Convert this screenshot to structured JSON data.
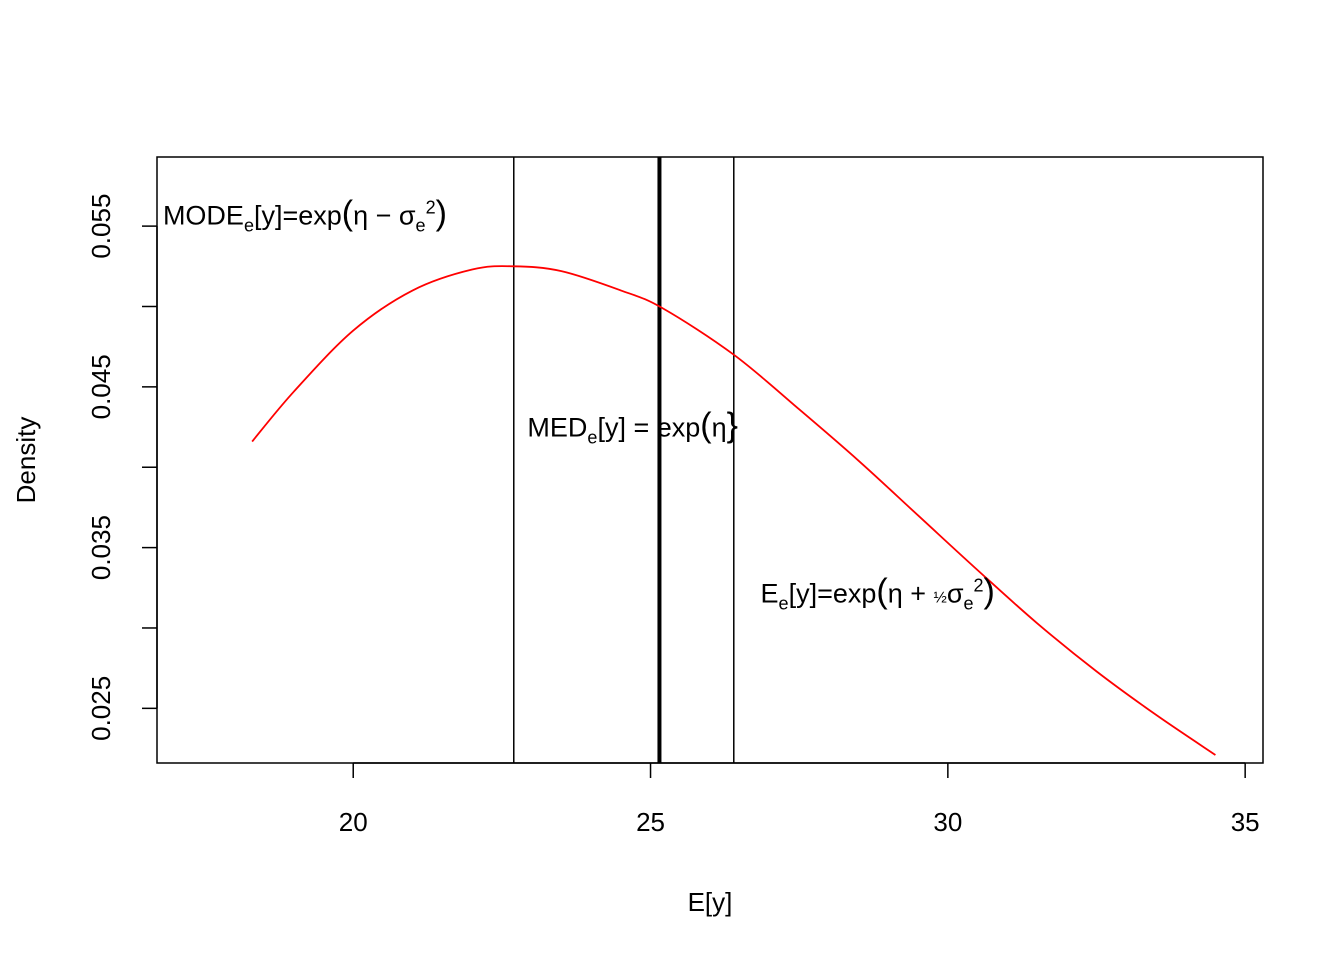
{
  "chart_data": {
    "type": "line",
    "title": "",
    "xlabel": "E[y]",
    "ylabel": "Density",
    "xlim": [
      16.7,
      35.3
    ],
    "ylim": [
      0.0216,
      0.0593
    ],
    "x_ticks": [
      20,
      25,
      30,
      35
    ],
    "x_tick_labels": [
      "20",
      "25",
      "30",
      "35"
    ],
    "y_ticks": [
      0.025,
      0.03,
      0.035,
      0.04,
      0.045,
      0.05,
      0.055
    ],
    "y_tick_labels": [
      "0.025",
      "",
      "0.035",
      "",
      "0.045",
      "",
      "0.055"
    ],
    "grid": false,
    "legend": "none",
    "series": [
      {
        "color": "#ff0000",
        "x": [
          18.3,
          19.0,
          20.0,
          21.0,
          22.0,
          22.7,
          23.5,
          24.5,
          25.2,
          26.4,
          27.5,
          28.5,
          29.5,
          30.5,
          31.5,
          32.5,
          33.5,
          34.5
        ],
        "y": [
          0.0416,
          0.0447,
          0.0485,
          0.051,
          0.0523,
          0.0525,
          0.0522,
          0.051,
          0.0499,
          0.047,
          0.0436,
          0.0404,
          0.037,
          0.0336,
          0.0303,
          0.0273,
          0.0246,
          0.0221
        ]
      }
    ],
    "vertical_lines": [
      {
        "x": 22.7,
        "weight": "thin"
      },
      {
        "x": 25.15,
        "weight": "thick"
      },
      {
        "x": 26.4,
        "weight": "thin"
      }
    ],
    "annotations": [
      {
        "id": "mode",
        "x": 16.8,
        "y": 0.0551,
        "anchor": "start",
        "parts": [
          {
            "t": "MODE"
          },
          {
            "t": "e",
            "sub": true
          },
          {
            "t": "[y]=exp"
          },
          {
            "t": "(",
            "big": true
          },
          {
            "t": "η − σ"
          },
          {
            "t": "e",
            "sub": true
          },
          {
            "t": "2",
            "sup": true
          },
          {
            "t": ")",
            "big": true
          }
        ]
      },
      {
        "id": "median",
        "x": 24.7,
        "y": 0.0419,
        "anchor": "middle",
        "parts": [
          {
            "t": "MED"
          },
          {
            "t": "e",
            "sub": true
          },
          {
            "t": "[y] =  exp"
          },
          {
            "t": "(",
            "big": true
          },
          {
            "t": "η"
          },
          {
            "t": "}",
            "big": true
          }
        ]
      },
      {
        "id": "mean",
        "x": 26.85,
        "y": 0.0316,
        "anchor": "start",
        "parts": [
          {
            "t": "E"
          },
          {
            "t": "e",
            "sub": true
          },
          {
            "t": "[y]=exp"
          },
          {
            "t": "(",
            "big": true
          },
          {
            "t": "η + "
          },
          {
            "t": "½",
            "frac": true
          },
          {
            "t": "σ"
          },
          {
            "t": "e",
            "sub": true
          },
          {
            "t": "2",
            "sup": true
          },
          {
            "t": ")",
            "big": true
          }
        ]
      }
    ]
  }
}
